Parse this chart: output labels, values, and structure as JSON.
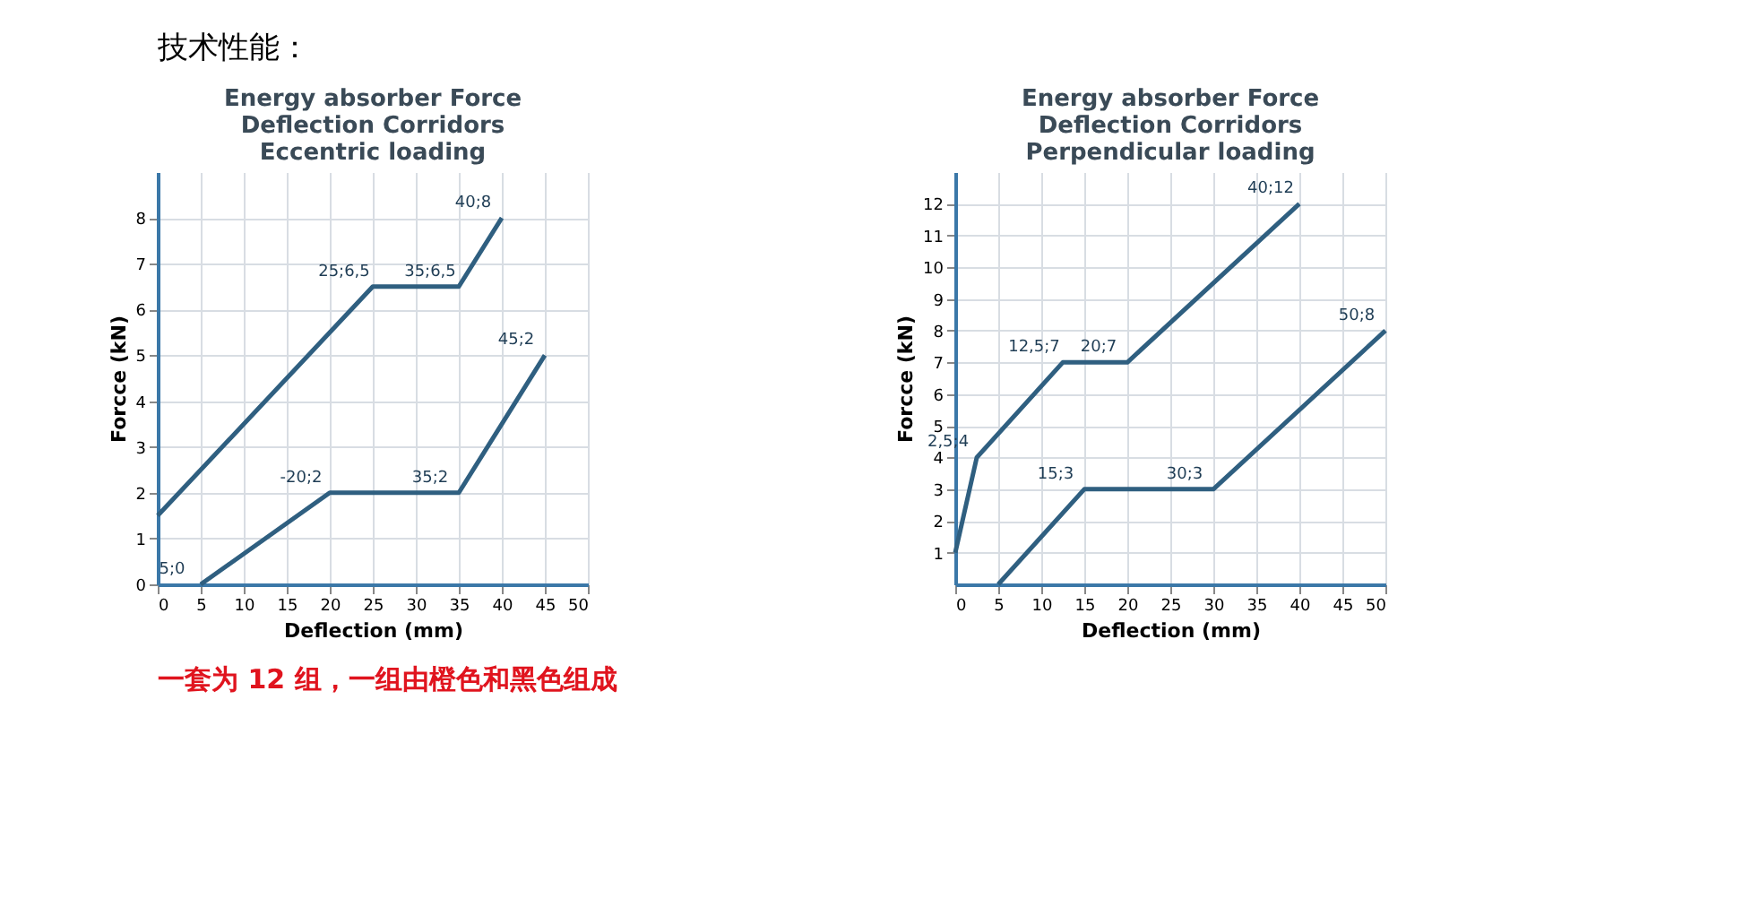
{
  "chart_data": [
    {
      "type": "line",
      "title": "Energy absorber Force\nDeflection Corridors\nEccentric loading",
      "xlabel": "Deflection (mm)",
      "ylabel": "Forcce (kN)",
      "xlim": [
        0,
        50
      ],
      "ylim": [
        0,
        9
      ],
      "xticks": [
        0,
        5,
        10,
        15,
        20,
        25,
        30,
        35,
        40,
        45,
        50
      ],
      "yticks": [
        0,
        1,
        2,
        3,
        4,
        5,
        6,
        7,
        8
      ],
      "grid": true,
      "marker": "none",
      "line_style": "solid",
      "series": [
        {
          "color": "#2f5f80",
          "x": [
            0,
            25,
            35,
            40
          ],
          "values": [
            1.5,
            6.5,
            6.5,
            8
          ]
        },
        {
          "color": "#2f5f80",
          "x": [
            5,
            20,
            35,
            45
          ],
          "values": [
            0,
            2,
            2,
            5
          ]
        }
      ],
      "annotations": [
        "技术性能：",
        "一套为 12 组，一组由橙色和黑色组成",
        {
          "text": "40;8",
          "x": 40,
          "y": 8
        },
        {
          "text": "25;6,5",
          "x": 25,
          "y": 6.5
        },
        {
          "text": "35;6,5",
          "x": 35,
          "y": 6.5
        },
        {
          "text": "45;2",
          "x": 45,
          "y": 5
        },
        {
          "text": "-20;2",
          "x": 20,
          "y": 2
        },
        {
          "text": "35;2",
          "x": 35,
          "y": 2
        },
        {
          "text": "5;0",
          "x": 5,
          "y": 0
        }
      ]
    },
    {
      "type": "line",
      "title": "Energy absorber Force\nDeflection Corridors\nPerpendicular loading",
      "xlabel": "Deflection (mm)",
      "ylabel": "Forcce (kN)",
      "xlim": [
        0,
        50
      ],
      "ylim": [
        0,
        13
      ],
      "xticks": [
        0,
        5,
        10,
        15,
        20,
        25,
        30,
        35,
        40,
        45,
        50
      ],
      "yticks": [
        1,
        2,
        3,
        4,
        5,
        6,
        7,
        8,
        9,
        10,
        11,
        12
      ],
      "grid": true,
      "marker": "none",
      "line_style": "solid",
      "series": [
        {
          "color": "#2f5f80",
          "x": [
            0,
            2.5,
            12.5,
            20,
            40
          ],
          "values": [
            1,
            4,
            7,
            7,
            12
          ]
        },
        {
          "color": "#2f5f80",
          "x": [
            5,
            15,
            30,
            50
          ],
          "values": [
            0,
            3,
            3,
            8
          ]
        }
      ],
      "annotations": [
        {
          "text": "40;12",
          "x": 40,
          "y": 12
        },
        {
          "text": "12,5;7",
          "x": 12.5,
          "y": 7
        },
        {
          "text": "20;7",
          "x": 20,
          "y": 7
        },
        {
          "text": "50;8",
          "x": 50,
          "y": 8
        },
        {
          "text": "2,5;4",
          "x": 2.5,
          "y": 4
        },
        {
          "text": "15;3",
          "x": 15,
          "y": 3
        },
        {
          "text": "30;3",
          "x": 30,
          "y": 3
        }
      ]
    }
  ]
}
